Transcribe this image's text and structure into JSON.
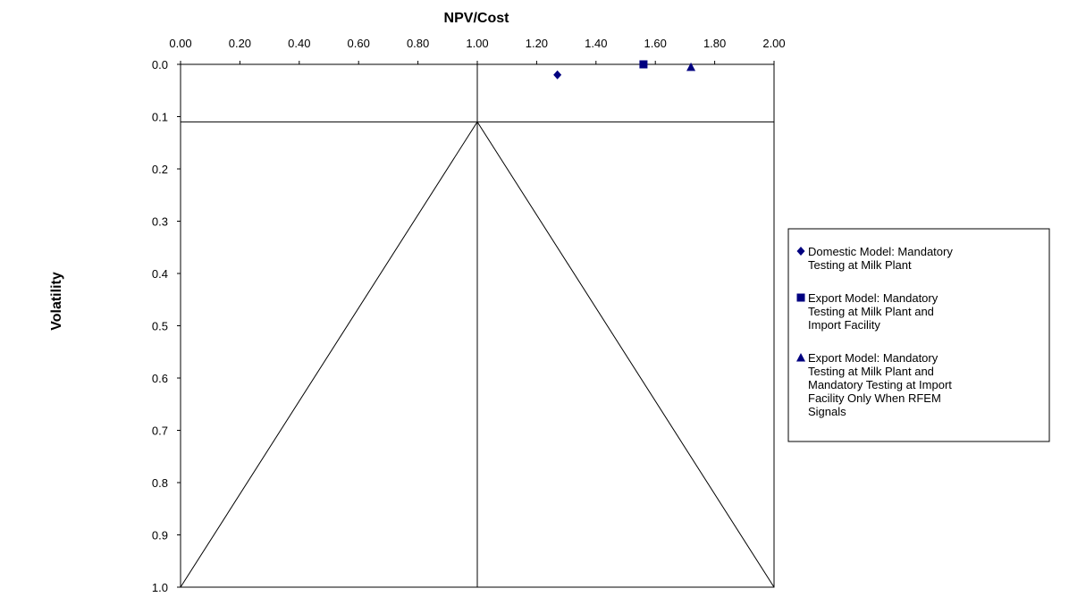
{
  "chart_data": {
    "type": "scatter",
    "title": "",
    "xlabel": "NPV/Cost",
    "ylabel": "Volatility",
    "xlim": [
      0,
      2
    ],
    "ylim": [
      0,
      1
    ],
    "x_axis_position": "top",
    "y_axis_inverted": true,
    "x_ticks": [
      "0.00",
      "0.20",
      "0.40",
      "0.60",
      "0.80",
      "1.00",
      "1.20",
      "1.40",
      "1.60",
      "1.80",
      "2.00"
    ],
    "y_ticks": [
      "0.0",
      "0.1",
      "0.2",
      "0.3",
      "0.4",
      "0.5",
      "0.6",
      "0.7",
      "0.8",
      "0.9",
      "1.0"
    ],
    "grid": false,
    "legend_position": "right",
    "marker_color": "#000080",
    "series": [
      {
        "name": "Domestic Model:  Mandatory Testing at Milk Plant",
        "marker": "diamond",
        "points": [
          {
            "x": 1.27,
            "y": 0.02
          }
        ]
      },
      {
        "name": "Export Model: Mandatory Testing at Milk Plant and Import Facility",
        "marker": "square",
        "points": [
          {
            "x": 1.56,
            "y": 0.0
          }
        ]
      },
      {
        "name": "Export Model: Mandatory Testing at Milk Plant and Mandatory Testing at Import Facility Only When RFEM Signals",
        "marker": "triangle",
        "points": [
          {
            "x": 1.72,
            "y": 0.005
          }
        ]
      }
    ],
    "reference_lines": [
      {
        "x": [
          0,
          2
        ],
        "y": [
          0.11,
          0.11
        ]
      },
      {
        "x": [
          1.0,
          1.0
        ],
        "y": [
          0,
          1
        ]
      },
      {
        "x": [
          0,
          1.0
        ],
        "y": [
          1,
          0.11
        ]
      },
      {
        "x": [
          1.0,
          2.0
        ],
        "y": [
          0.11,
          1
        ]
      }
    ]
  }
}
